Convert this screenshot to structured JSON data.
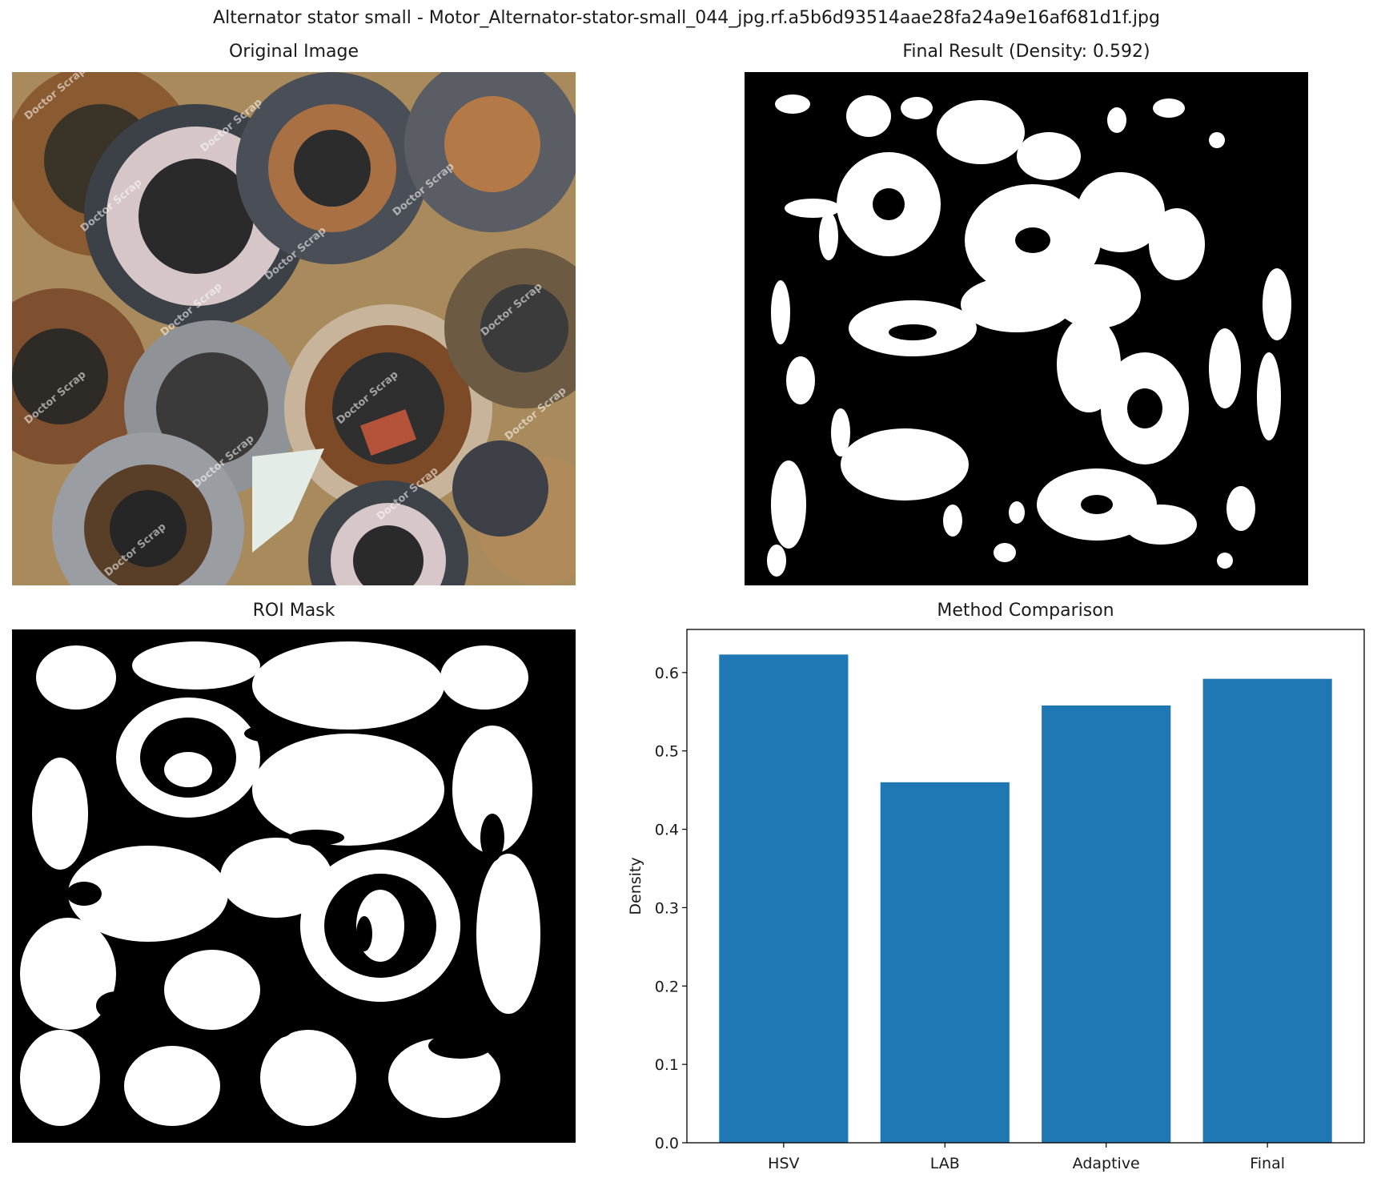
{
  "figure": {
    "suptitle": "Alternator stator small - Motor_Alternator-stator-small_044_jpg.rf.a5b6d93514aae28fa24a9e16af681d1f.jpg"
  },
  "panels": {
    "original": {
      "title": "Original Image",
      "watermark": "Doctor Scrap"
    },
    "final": {
      "title": "Final Result (Density: 0.592)"
    },
    "roi": {
      "title": "ROI Mask"
    },
    "comparison": {
      "title": "Method Comparison"
    }
  },
  "chart_data": {
    "type": "bar",
    "title": "Method Comparison",
    "categories": [
      "HSV",
      "LAB",
      "Adaptive",
      "Final"
    ],
    "values": [
      0.623,
      0.46,
      0.558,
      0.592
    ],
    "xlabel": "",
    "ylabel": "Density",
    "ylim": [
      0,
      0.655
    ],
    "yticks": [
      "0.0",
      "0.1",
      "0.2",
      "0.3",
      "0.4",
      "0.5",
      "0.6"
    ],
    "bar_color": "#1f77b4",
    "grid": false
  }
}
